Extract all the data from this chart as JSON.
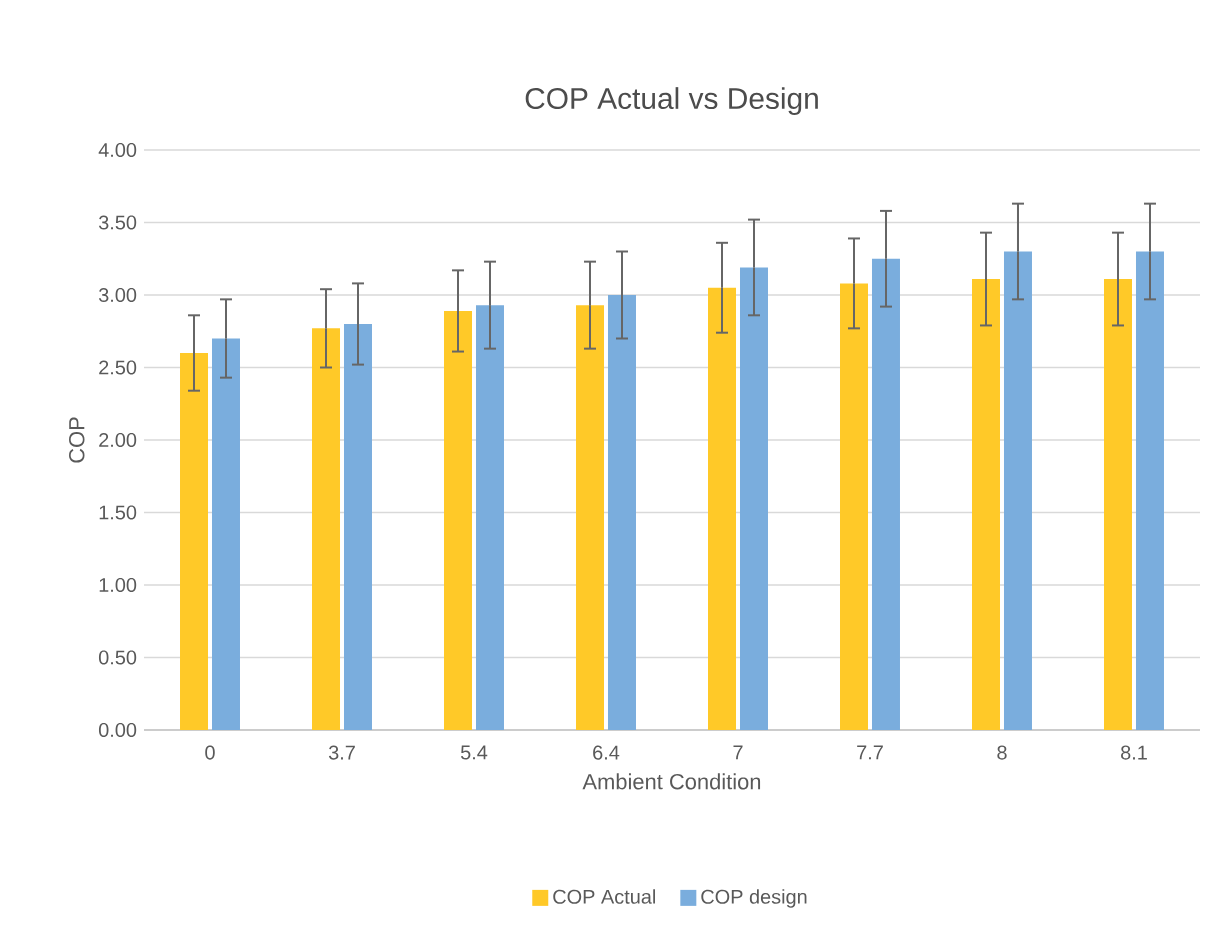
{
  "chart_data": {
    "type": "bar",
    "title": "COP Actual vs Design",
    "xlabel": "Ambient Condition",
    "ylabel": "COP",
    "categories": [
      "0",
      "3.7",
      "5.4",
      "6.4",
      "7",
      "7.7",
      "8",
      "8.1"
    ],
    "series": [
      {
        "name": "COP Actual",
        "color": "#ffc928",
        "values": [
          2.6,
          2.77,
          2.89,
          2.93,
          3.05,
          3.08,
          3.11,
          3.11
        ],
        "errors": [
          0.26,
          0.27,
          0.28,
          0.3,
          0.31,
          0.31,
          0.32,
          0.32
        ]
      },
      {
        "name": "COP design",
        "color": "#7aaddd",
        "values": [
          2.7,
          2.8,
          2.93,
          3.0,
          3.19,
          3.25,
          3.3,
          3.3
        ],
        "errors": [
          0.27,
          0.28,
          0.3,
          0.3,
          0.33,
          0.33,
          0.33,
          0.33
        ]
      }
    ],
    "ylim": [
      0,
      4
    ],
    "yticks": [
      {
        "value": 0,
        "label": "0.00"
      },
      {
        "value": 0.5,
        "label": "0.50"
      },
      {
        "value": 1,
        "label": "1.00"
      },
      {
        "value": 1.5,
        "label": "1.50"
      },
      {
        "value": 2,
        "label": "2.00"
      },
      {
        "value": 2.5,
        "label": "2.50"
      },
      {
        "value": 3,
        "label": "3.00"
      },
      {
        "value": 3.5,
        "label": "3.50"
      },
      {
        "value": 4,
        "label": "4.00"
      }
    ],
    "grid": "y",
    "legend": "bottom"
  }
}
